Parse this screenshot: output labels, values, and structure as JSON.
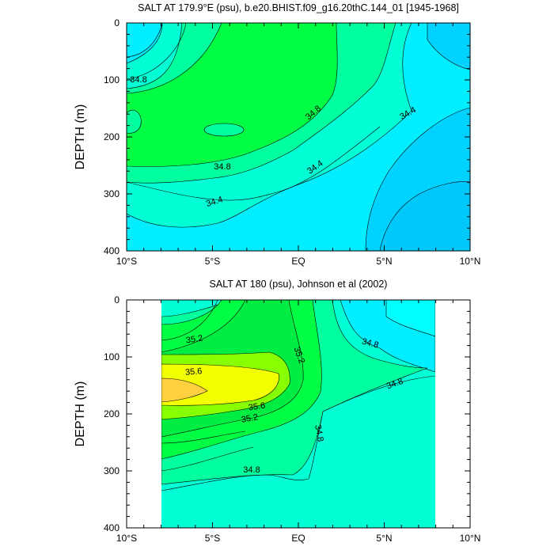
{
  "chart_data": [
    {
      "type": "contour",
      "title": "SALT AT 179.9°E (psu), b.e20.BHIST.f09_g16.20thC.144_01 [1945-1968]",
      "ylabel": "DEPTH (m)",
      "xlim": [
        -10,
        10
      ],
      "ylim": [
        400,
        0
      ],
      "x_ticks": [
        "10°S",
        "5°S",
        "EQ",
        "5°N",
        "10°N"
      ],
      "y_ticks": [
        "0",
        "100",
        "200",
        "300",
        "400"
      ],
      "contour_labels": [
        "34.8",
        "34.8",
        "34.4",
        "34.8",
        "34.4",
        "34.4"
      ],
      "fill_colors": [
        "#00d2ff",
        "#00eeff",
        "#00ffd5",
        "#00ff9e",
        "#00ff44"
      ]
    },
    {
      "type": "contour",
      "title": "SALT AT 180 (psu), Johnson et al (2002)",
      "ylabel": "DEPTH (m)",
      "xlim": [
        -10,
        10
      ],
      "ylim": [
        400,
        0
      ],
      "data_xrange": [
        -8,
        8
      ],
      "x_ticks": [
        "10°S",
        "5°S",
        "EQ",
        "5°N",
        "10°N"
      ],
      "y_ticks": [
        "0",
        "100",
        "200",
        "300",
        "400"
      ],
      "contour_labels": [
        "35.2",
        "34.8",
        "35.2",
        "35.6",
        "34.8",
        "35.6",
        "35.2",
        "34.8",
        "34.8"
      ],
      "fill_colors": [
        "#00eeff",
        "#00ffd5",
        "#00ff9e",
        "#00ff44",
        "#88ff00",
        "#f2ff00",
        "#ffd040"
      ]
    }
  ]
}
